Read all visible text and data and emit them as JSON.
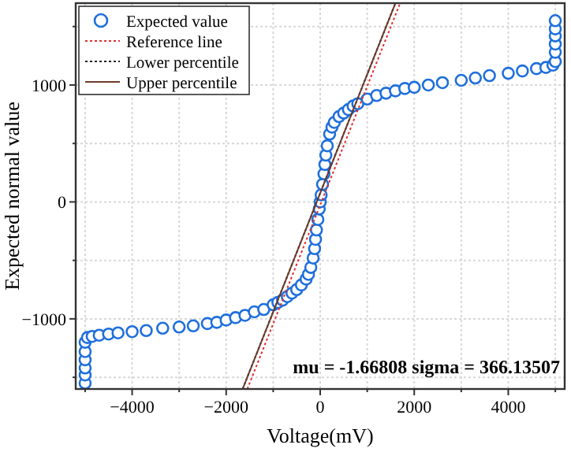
{
  "chart_data": {
    "type": "scatter",
    "xlabel": "Voltage(mV)",
    "ylabel": "Expected normal value",
    "xlim": [
      -5200,
      5200
    ],
    "ylim": [
      -1600,
      1700
    ],
    "xticks": [
      {
        "value": -5000,
        "label": null
      },
      -4000,
      {
        "value": -3000,
        "label": null
      },
      -2000,
      {
        "value": -1000,
        "label": null
      },
      0,
      {
        "value": 1000,
        "label": null
      },
      2000,
      {
        "value": 3000,
        "label": null
      },
      4000,
      {
        "value": 5000,
        "label": null
      }
    ],
    "yticks": [
      {
        "value": -1500,
        "label": null
      },
      -1000,
      {
        "value": -500,
        "label": null
      },
      0,
      {
        "value": 500,
        "label": null
      },
      1000,
      {
        "value": 1500,
        "label": null
      }
    ],
    "grid": true,
    "legend": "top left",
    "annotations": [
      "mu = -1.66808  sigma = 366.13507"
    ],
    "series": [
      {
        "name": "Expected value",
        "marker": "circle",
        "color": "#1f6fdc",
        "x": [
          -5000,
          -5000,
          -5000,
          -5000,
          -5000,
          -5000,
          -4950,
          -4850,
          -4700,
          -4500,
          -4300,
          -4000,
          -3700,
          -3350,
          -3000,
          -2700,
          -2400,
          -2200,
          -2000,
          -1800,
          -1600,
          -1400,
          -1200,
          -1000,
          -900,
          -800,
          -700,
          -600,
          -500,
          -400,
          -300,
          -250,
          -200,
          -150,
          -120,
          -100,
          -80,
          -50,
          -20,
          0,
          20,
          50,
          80,
          100,
          120,
          150,
          200,
          250,
          300,
          400,
          500,
          600,
          700,
          800,
          1000,
          1200,
          1400,
          1600,
          1800,
          2000,
          2300,
          2600,
          3000,
          3300,
          3600,
          4000,
          4300,
          4600,
          4800,
          4950,
          5000,
          5000,
          5000,
          5000,
          5000,
          5000
        ],
        "values": [
          -1550,
          -1480,
          -1420,
          -1350,
          -1280,
          -1200,
          -1160,
          -1150,
          -1140,
          -1130,
          -1120,
          -1110,
          -1100,
          -1080,
          -1070,
          -1060,
          -1040,
          -1030,
          -1010,
          -990,
          -970,
          -940,
          -920,
          -880,
          -860,
          -840,
          -810,
          -780,
          -750,
          -710,
          -660,
          -620,
          -560,
          -480,
          -400,
          -320,
          -240,
          -150,
          -60,
          0,
          60,
          150,
          240,
          320,
          400,
          480,
          580,
          640,
          680,
          730,
          760,
          790,
          820,
          840,
          880,
          910,
          930,
          950,
          970,
          980,
          1000,
          1020,
          1040,
          1060,
          1080,
          1100,
          1120,
          1140,
          1150,
          1170,
          1200,
          1280,
          1350,
          1420,
          1480,
          1550
        ]
      },
      {
        "name": "Reference line",
        "type": "line",
        "color": "#e03030",
        "line_style": "dotted",
        "x": [
          -1550,
          1700
        ],
        "values": [
          -1600,
          1700
        ]
      },
      {
        "name": "Lower percentile",
        "type": "line",
        "color": "#202020",
        "line_style": "dotted",
        "x": [
          -1650,
          1600
        ],
        "values": [
          -1600,
          1700
        ]
      },
      {
        "name": "Upper percentile",
        "type": "line",
        "color": "#6b3a2a",
        "line_style": "solid",
        "x": [
          -1650,
          1600
        ],
        "values": [
          -1600,
          1700
        ]
      }
    ]
  }
}
